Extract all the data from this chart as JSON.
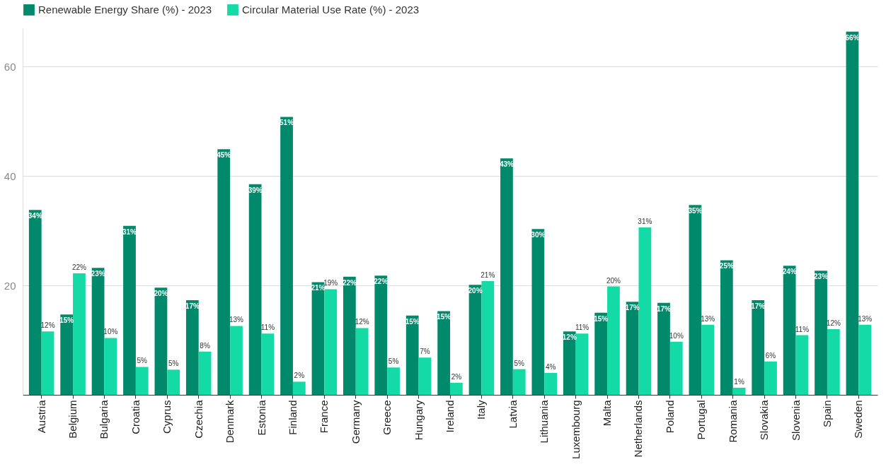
{
  "chart_data": {
    "type": "bar",
    "categories": [
      "Austria",
      "Belgium",
      "Bulgaria",
      "Croatia",
      "Cyprus",
      "Czechia",
      "Denmark",
      "Estonia",
      "Finland",
      "France",
      "Germany",
      "Greece",
      "Hungary",
      "Ireland",
      "Italy",
      "Latvia",
      "Lithuania",
      "Luxembourg",
      "Malta",
      "Netherlands",
      "Poland",
      "Portugal",
      "Romania",
      "Slovakia",
      "Slovenia",
      "Spain",
      "Sweden"
    ],
    "series": [
      {
        "name": "Renewable Energy Share (%) - 2023",
        "color": "#00896b",
        "values": [
          33.8,
          14.7,
          23.2,
          30.9,
          19.6,
          17.3,
          44.9,
          38.5,
          50.8,
          20.6,
          21.6,
          21.8,
          14.5,
          15.3,
          20.1,
          43.2,
          30.3,
          11.6,
          15.0,
          17.0,
          16.8,
          34.7,
          24.6,
          17.3,
          23.6,
          22.7,
          66.4
        ],
        "value_labels": [
          "34%",
          "15%",
          "23%",
          "31%",
          "20%",
          "17%",
          "45%",
          "39%",
          "51%",
          "21%",
          "22%",
          "22%",
          "15%",
          "15%",
          "20%",
          "43%",
          "30%",
          "12%",
          "15%",
          "17%",
          "17%",
          "35%",
          "25%",
          "17%",
          "24%",
          "23%",
          "66%"
        ]
      },
      {
        "name": "Circular Material Use Rate (%) - 2023",
        "color": "#14dba5",
        "values": [
          11.6,
          22.2,
          10.4,
          5.1,
          4.6,
          7.9,
          12.6,
          11.2,
          2.4,
          19.3,
          12.2,
          5.0,
          6.8,
          2.2,
          20.8,
          4.7,
          4.0,
          11.2,
          19.8,
          30.6,
          9.7,
          12.8,
          1.3,
          6.1,
          10.9,
          12.0,
          12.8
        ],
        "value_labels": [
          "12%",
          "22%",
          "10%",
          "5%",
          "5%",
          "8%",
          "13%",
          "11%",
          "2%",
          "19%",
          "12%",
          "5%",
          "7%",
          "2%",
          "21%",
          "5%",
          "4%",
          "11%",
          "20%",
          "31%",
          "10%",
          "13%",
          "1%",
          "6%",
          "11%",
          "12%",
          "13%"
        ]
      }
    ],
    "ylim": [
      0,
      67
    ],
    "yticks": [
      20,
      40,
      60
    ],
    "grid": "y",
    "legend": "top left"
  }
}
